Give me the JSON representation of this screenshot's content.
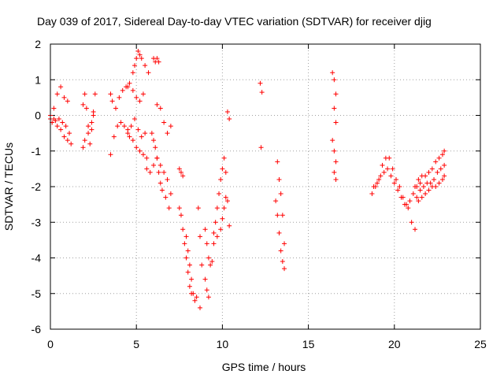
{
  "chart_data": {
    "type": "scatter",
    "title": "Day 039 of 2017, Sidereal Day-to-day VTEC variation (SDTVAR) for receiver djig",
    "xlabel": "GPS time / hours",
    "ylabel": "SDTVAR / TECUs",
    "xlim": [
      0,
      25
    ],
    "ylim": [
      -6,
      2
    ],
    "xticks": [
      0,
      5,
      10,
      15,
      20,
      25
    ],
    "yticks": [
      -6,
      -5,
      -4,
      -3,
      -2,
      -1,
      0,
      1,
      2
    ],
    "xtick_labels": [
      "0",
      "5",
      "10",
      "15",
      "20",
      "25"
    ],
    "ytick_labels": [
      "-6",
      "-5",
      "-4",
      "-3",
      "-2",
      "-1",
      "0",
      "1",
      "2"
    ],
    "grid": true,
    "marker": "+",
    "color": "#ff0000",
    "series": [
      {
        "name": "SDTVAR",
        "segments": [
          {
            "x": [
              0.0,
              0.2,
              0.4,
              0.6,
              0.8,
              1.0
            ],
            "y": [
              -0.1,
              0.2,
              0.6,
              0.8,
              0.5,
              0.4
            ]
          },
          {
            "x": [
              0.0,
              0.2,
              0.4,
              0.6,
              0.8,
              1.0,
              1.2
            ],
            "y": [
              0.0,
              -0.1,
              -0.3,
              -0.4,
              -0.6,
              -0.7,
              -0.8
            ]
          },
          {
            "x": [
              0.1,
              0.3,
              0.5,
              0.7,
              0.9,
              1.1
            ],
            "y": [
              -0.2,
              -0.15,
              -0.1,
              -0.2,
              -0.3,
              -0.5
            ]
          },
          {
            "x": [
              1.9,
              2.0,
              2.1,
              2.2,
              2.3,
              2.4,
              2.5,
              2.6
            ],
            "y": [
              0.3,
              0.6,
              0.2,
              -0.3,
              -0.8,
              -0.4,
              0.1,
              0.6
            ]
          },
          {
            "x": [
              1.9,
              2.0,
              2.2,
              2.4,
              2.5
            ],
            "y": [
              -0.9,
              -0.7,
              -0.5,
              -0.2,
              0.0
            ]
          },
          {
            "x": [
              3.5,
              3.6,
              3.8,
              4.0,
              4.2,
              4.4
            ],
            "y": [
              0.6,
              0.4,
              0.2,
              0.5,
              0.7,
              0.8
            ]
          },
          {
            "x": [
              3.5,
              3.7,
              3.9,
              4.1,
              4.3,
              4.5
            ],
            "y": [
              -1.1,
              -0.6,
              -0.3,
              -0.2,
              -0.3,
              -0.5
            ]
          },
          {
            "x": [
              4.5,
              4.6,
              4.8,
              5.0,
              5.2,
              5.4
            ],
            "y": [
              0.8,
              0.9,
              0.7,
              0.5,
              0.4,
              0.6
            ]
          },
          {
            "x": [
              4.5,
              4.7,
              4.9,
              5.1,
              5.3,
              5.5
            ],
            "y": [
              -0.4,
              -0.3,
              -0.1,
              -0.4,
              -0.6,
              -0.5
            ]
          },
          {
            "x": [
              4.6,
              4.8,
              5.0,
              5.2,
              5.4,
              5.6
            ],
            "y": [
              -0.6,
              -0.7,
              -0.9,
              -1.0,
              -1.1,
              -1.2
            ]
          },
          {
            "x": [
              4.8,
              4.9,
              5.0,
              5.1,
              5.2,
              5.3,
              5.5,
              5.7
            ],
            "y": [
              1.2,
              1.4,
              1.6,
              1.8,
              1.7,
              1.6,
              1.4,
              1.2
            ]
          },
          {
            "x": [
              6.0,
              6.1,
              6.2,
              6.3
            ],
            "y": [
              1.6,
              1.5,
              1.6,
              1.5
            ]
          },
          {
            "x": [
              5.6,
              5.8,
              6.0,
              6.2,
              6.4,
              6.6,
              6.8,
              7.0
            ],
            "y": [
              -1.5,
              -1.6,
              -1.4,
              -1.2,
              -1.4,
              -1.6,
              -1.8,
              -2.2
            ]
          },
          {
            "x": [
              6.2,
              6.4,
              6.6,
              6.8,
              7.0
            ],
            "y": [
              0.3,
              0.2,
              -0.2,
              -0.5,
              -0.3
            ]
          },
          {
            "x": [
              5.9,
              6.0,
              6.1,
              6.2,
              6.3,
              6.4,
              6.5,
              6.7,
              6.9
            ],
            "y": [
              -0.5,
              -0.7,
              -0.9,
              -1.2,
              -1.6,
              -1.9,
              -2.1,
              -2.3,
              -2.6
            ]
          },
          {
            "x": [
              7.5,
              7.6,
              7.7
            ],
            "y": [
              -1.5,
              -1.6,
              -1.7
            ]
          },
          {
            "x": [
              7.5,
              7.6,
              7.7,
              7.8,
              7.9,
              8.0,
              8.1,
              8.2
            ],
            "y": [
              -2.6,
              -2.8,
              -3.2,
              -3.6,
              -4.0,
              -4.4,
              -4.8,
              -5.0
            ]
          },
          {
            "x": [
              7.9,
              8.0,
              8.1,
              8.2,
              8.3,
              8.4,
              8.5
            ],
            "y": [
              -3.4,
              -3.8,
              -4.2,
              -4.6,
              -5.0,
              -5.2,
              -5.1
            ]
          },
          {
            "x": [
              8.6,
              8.7,
              8.8,
              9.0,
              9.1,
              9.2
            ],
            "y": [
              -2.6,
              -3.4,
              -4.2,
              -4.6,
              -4.9,
              -5.1
            ]
          },
          {
            "x": [
              8.7
            ],
            "y": [
              -5.4
            ]
          },
          {
            "x": [
              9.0,
              9.1,
              9.2,
              9.3,
              9.4
            ],
            "y": [
              -3.2,
              -3.6,
              -4.0,
              -4.2,
              -4.1
            ]
          },
          {
            "x": [
              9.5,
              9.6,
              9.7,
              9.8,
              9.9,
              10.0,
              10.1
            ],
            "y": [
              -3.3,
              -3.0,
              -2.6,
              -2.2,
              -1.8,
              -1.5,
              -1.2
            ]
          },
          {
            "x": [
              9.5,
              9.7,
              9.9,
              10.0,
              10.1,
              10.2
            ],
            "y": [
              -3.6,
              -3.4,
              -3.2,
              -2.9,
              -2.6,
              -2.3
            ]
          },
          {
            "x": [
              10.2,
              10.3,
              10.4
            ],
            "y": [
              -1.6,
              -2.4,
              -3.1
            ]
          },
          {
            "x": [
              10.3,
              10.4
            ],
            "y": [
              0.1,
              -0.1
            ]
          },
          {
            "x": [
              12.2,
              12.3,
              12.25
            ],
            "y": [
              0.9,
              0.65,
              -0.9
            ]
          },
          {
            "x": [
              13.1,
              13.2,
              13.3,
              13.4,
              13.5,
              13.6
            ],
            "y": [
              -2.4,
              -2.8,
              -3.3,
              -3.8,
              -4.1,
              -4.3
            ]
          },
          {
            "x": [
              13.2,
              13.3,
              13.4,
              13.5,
              13.6
            ],
            "y": [
              -1.3,
              -1.8,
              -2.2,
              -2.8,
              -3.6
            ]
          },
          {
            "x": [
              16.4,
              16.5,
              16.6,
              16.5,
              16.6
            ],
            "y": [
              1.2,
              1.0,
              0.6,
              0.2,
              -0.2
            ]
          },
          {
            "x": [
              16.4,
              16.5,
              16.6,
              16.5,
              16.6
            ],
            "y": [
              -0.7,
              -1.0,
              -1.3,
              -1.6,
              -1.8
            ]
          },
          {
            "x": [
              18.7,
              18.9,
              19.1,
              19.3,
              19.5,
              19.7,
              19.9,
              20.1,
              20.3,
              20.5,
              20.7,
              20.9,
              21.1,
              21.3,
              21.5
            ],
            "y": [
              -2.2,
              -2.0,
              -1.8,
              -1.4,
              -1.2,
              -1.2,
              -1.5,
              -1.8,
              -2.0,
              -2.3,
              -2.5,
              -2.4,
              -2.2,
              -2.0,
              -1.9
            ]
          },
          {
            "x": [
              18.8,
              19.0,
              19.2,
              19.4,
              19.6,
              19.8,
              20.0,
              20.2,
              20.4,
              20.6,
              20.8,
              21.0,
              21.2
            ],
            "y": [
              -2.0,
              -1.9,
              -1.7,
              -1.6,
              -1.5,
              -1.7,
              -1.9,
              -2.1,
              -2.3,
              -2.5,
              -2.6,
              -3.0,
              -3.2
            ]
          },
          {
            "x": [
              21.2,
              21.4,
              21.6,
              21.8,
              22.0,
              22.2,
              22.4,
              22.6,
              22.8,
              22.9
            ],
            "y": [
              -2.0,
              -1.8,
              -1.7,
              -1.7,
              -1.6,
              -1.5,
              -1.3,
              -1.2,
              -1.1,
              -1.0
            ]
          },
          {
            "x": [
              21.3,
              21.5,
              21.7,
              21.9,
              22.1,
              22.3,
              22.5,
              22.7,
              22.9
            ],
            "y": [
              -2.3,
              -2.1,
              -2.0,
              -1.9,
              -1.9,
              -1.8,
              -1.6,
              -1.5,
              -1.4
            ]
          },
          {
            "x": [
              21.4,
              21.6,
              21.8,
              22.0,
              22.2,
              22.4,
              22.6,
              22.8,
              22.9
            ],
            "y": [
              -2.4,
              -2.3,
              -2.2,
              -2.1,
              -2.0,
              -2.0,
              -1.9,
              -1.8,
              -1.7
            ]
          }
        ]
      }
    ]
  }
}
